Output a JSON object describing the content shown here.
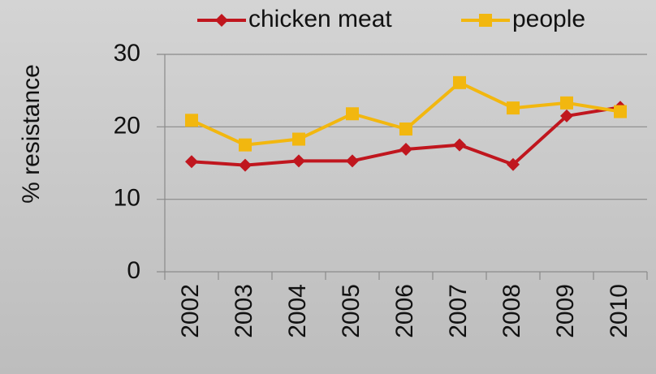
{
  "chart_data": {
    "type": "line",
    "y_label": "% resistance",
    "categories": [
      "2002",
      "2003",
      "2004",
      "2005",
      "2006",
      "2007",
      "2008",
      "2009",
      "2010"
    ],
    "series": [
      {
        "name": "chicken meat",
        "color": "#c0161e",
        "marker": "diamond",
        "values": [
          15.2,
          14.7,
          15.3,
          15.3,
          16.9,
          17.5,
          14.8,
          21.5,
          22.7
        ]
      },
      {
        "name": "people",
        "color": "#f2b70f",
        "marker": "square",
        "values": [
          20.9,
          17.5,
          18.3,
          21.8,
          19.7,
          26.1,
          22.6,
          23.3,
          22.1
        ]
      }
    ],
    "ylim": [
      0,
      30
    ],
    "yticks": [
      0,
      10,
      20,
      30
    ],
    "grid": true,
    "legend": "top"
  }
}
